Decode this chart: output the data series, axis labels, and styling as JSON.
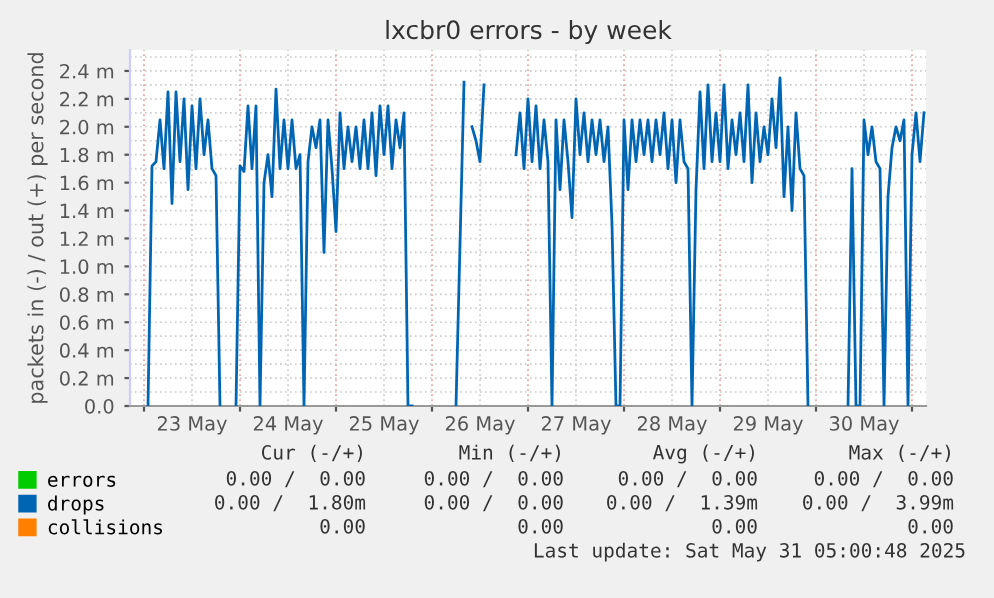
{
  "chart_data": {
    "type": "line",
    "title": "lxcbr0 errors - by week",
    "ylabel": "packets in (-) / out (+) per second",
    "xlim": [
      "2025-05-22T20:30",
      "2025-05-31T03:30"
    ],
    "xticks": [
      {
        "value": "2025-05-23T00:00",
        "label": null
      },
      {
        "value": "2025-05-24T00:00",
        "label": null
      },
      {
        "value": "2025-05-25T00:00",
        "label": null
      },
      {
        "value": "2025-05-26T00:00",
        "label": null
      },
      {
        "value": "2025-05-27T00:00",
        "label": null
      },
      {
        "value": "2025-05-28T00:00",
        "label": null
      },
      {
        "value": "2025-05-29T00:00",
        "label": null
      },
      {
        "value": "2025-05-30T00:00",
        "label": null
      },
      {
        "value": "2025-05-31T00:00",
        "label": null
      },
      {
        "value": "2025-05-23T12:00",
        "label": "23 May"
      },
      {
        "value": "2025-05-24T12:00",
        "label": "24 May"
      },
      {
        "value": "2025-05-25T12:00",
        "label": "25 May"
      },
      {
        "value": "2025-05-26T12:00",
        "label": "26 May"
      },
      {
        "value": "2025-05-27T12:00",
        "label": "27 May"
      },
      {
        "value": "2025-05-28T12:00",
        "label": "28 May"
      },
      {
        "value": "2025-05-29T12:00",
        "label": "29 May"
      },
      {
        "value": "2025-05-30T12:00",
        "label": "30 May"
      }
    ],
    "ylim": [
      0,
      2.55
    ],
    "yticks": [
      {
        "value": 0,
        "label": "0.0"
      },
      {
        "value": 0.2,
        "label": "0.2 m"
      },
      {
        "value": 0.4,
        "label": "0.4 m"
      },
      {
        "value": 0.6,
        "label": "0.6 m"
      },
      {
        "value": 0.8,
        "label": "0.8 m"
      },
      {
        "value": 1.0,
        "label": "1.0 m"
      },
      {
        "value": 1.2,
        "label": "1.2 m"
      },
      {
        "value": 1.4,
        "label": "1.4 m"
      },
      {
        "value": 1.6,
        "label": "1.6 m"
      },
      {
        "value": 1.8,
        "label": "1.8 m"
      },
      {
        "value": 2.0,
        "label": "2.0 m"
      },
      {
        "value": 2.2,
        "label": "2.2 m"
      },
      {
        "value": 2.4,
        "label": "2.4 m"
      }
    ],
    "grid": true,
    "legend": "bottom left",
    "series": [
      {
        "name": "errors",
        "color": "#00cc00"
      },
      {
        "name": "drops",
        "color": "#0066b3",
        "x": [
          "2025-05-23T01:00",
          "2025-05-23T02:00",
          "2025-05-23T03:00",
          "2025-05-23T04:00",
          "2025-05-23T05:00",
          "2025-05-23T06:00",
          "2025-05-23T07:00",
          "2025-05-23T08:00",
          "2025-05-23T09:00",
          "2025-05-23T10:00",
          "2025-05-23T11:00",
          "2025-05-23T12:00",
          "2025-05-23T13:00",
          "2025-05-23T14:00",
          "2025-05-23T15:00",
          "2025-05-23T16:00",
          "2025-05-23T17:00",
          "2025-05-23T18:00",
          "2025-05-23T19:00",
          "2025-05-23T21:00",
          "2025-05-23T23:00",
          "2025-05-24T00:00",
          "2025-05-24T01:00",
          "2025-05-24T02:00",
          "2025-05-24T03:00",
          "2025-05-24T04:00",
          "2025-05-24T05:00",
          "2025-05-24T06:00",
          "2025-05-24T07:00",
          "2025-05-24T08:00",
          "2025-05-24T09:00",
          "2025-05-24T10:00",
          "2025-05-24T11:00",
          "2025-05-24T12:00",
          "2025-05-24T13:00",
          "2025-05-24T14:00",
          "2025-05-24T15:00",
          "2025-05-24T16:00",
          "2025-05-24T17:00",
          "2025-05-24T18:00",
          "2025-05-24T19:00",
          "2025-05-24T20:00",
          "2025-05-24T21:00",
          "2025-05-24T22:00",
          "2025-05-24T23:00",
          "2025-05-25T00:00",
          "2025-05-25T01:00",
          "2025-05-25T02:00",
          "2025-05-25T03:00",
          "2025-05-25T04:00",
          "2025-05-25T05:00",
          "2025-05-25T06:00",
          "2025-05-25T07:00",
          "2025-05-25T08:00",
          "2025-05-25T09:00",
          "2025-05-25T10:00",
          "2025-05-25T11:00",
          "2025-05-25T12:00",
          "2025-05-25T13:00",
          "2025-05-25T14:00",
          "2025-05-25T15:00",
          "2025-05-25T16:00",
          "2025-05-25T17:00",
          "2025-05-25T18:00",
          "2025-05-25T19:00",
          "2025-05-25T23:00",
          "2025-05-26T06:00",
          "2025-05-26T08:00",
          "2025-05-26T09:00",
          "2025-05-26T10:00",
          "2025-05-26T11:00",
          "2025-05-26T12:00",
          "2025-05-26T13:00",
          "2025-05-26T15:00",
          "2025-05-26T21:00",
          "2025-05-26T22:00",
          "2025-05-26T23:00",
          "2025-05-27T00:00",
          "2025-05-27T01:00",
          "2025-05-27T02:00",
          "2025-05-27T03:00",
          "2025-05-27T04:00",
          "2025-05-27T05:00",
          "2025-05-27T06:00",
          "2025-05-27T07:00",
          "2025-05-27T08:00",
          "2025-05-27T09:00",
          "2025-05-27T10:00",
          "2025-05-27T11:00",
          "2025-05-27T12:00",
          "2025-05-27T13:00",
          "2025-05-27T14:00",
          "2025-05-27T15:00",
          "2025-05-27T16:00",
          "2025-05-27T17:00",
          "2025-05-27T18:00",
          "2025-05-27T19:00",
          "2025-05-27T20:00",
          "2025-05-27T21:00",
          "2025-05-27T22:00",
          "2025-05-27T23:00",
          "2025-05-28T00:00",
          "2025-05-28T01:00",
          "2025-05-28T02:00",
          "2025-05-28T03:00",
          "2025-05-28T04:00",
          "2025-05-28T05:00",
          "2025-05-28T06:00",
          "2025-05-28T07:00",
          "2025-05-28T08:00",
          "2025-05-28T09:00",
          "2025-05-28T10:00",
          "2025-05-28T11:00",
          "2025-05-28T12:00",
          "2025-05-28T13:00",
          "2025-05-28T14:00",
          "2025-05-28T15:00",
          "2025-05-28T16:00",
          "2025-05-28T17:00",
          "2025-05-28T18:00",
          "2025-05-28T19:00",
          "2025-05-28T20:00",
          "2025-05-28T21:00",
          "2025-05-28T22:00",
          "2025-05-28T23:00",
          "2025-05-29T00:00",
          "2025-05-29T01:00",
          "2025-05-29T02:00",
          "2025-05-29T03:00",
          "2025-05-29T04:00",
          "2025-05-29T05:00",
          "2025-05-29T06:00",
          "2025-05-29T07:00",
          "2025-05-29T08:00",
          "2025-05-29T09:00",
          "2025-05-29T10:00",
          "2025-05-29T11:00",
          "2025-05-29T12:00",
          "2025-05-29T13:00",
          "2025-05-29T14:00",
          "2025-05-29T15:00",
          "2025-05-29T16:00",
          "2025-05-29T17:00",
          "2025-05-29T18:00",
          "2025-05-29T19:00",
          "2025-05-29T20:00",
          "2025-05-29T21:00",
          "2025-05-29T22:00",
          "2025-05-30T03:00",
          "2025-05-30T08:00",
          "2025-05-30T09:00",
          "2025-05-30T10:00",
          "2025-05-30T11:00",
          "2025-05-30T12:00",
          "2025-05-30T13:00",
          "2025-05-30T14:00",
          "2025-05-30T15:00",
          "2025-05-30T16:00",
          "2025-05-30T17:00",
          "2025-05-30T18:00",
          "2025-05-30T19:00",
          "2025-05-30T20:00",
          "2025-05-30T21:00",
          "2025-05-30T22:00",
          "2025-05-30T23:00",
          "2025-05-31T00:00",
          "2025-05-31T01:00",
          "2025-05-31T02:00",
          "2025-05-31T03:00"
        ],
        "values": [
          0,
          1.72,
          1.75,
          2.05,
          1.7,
          2.25,
          1.45,
          2.25,
          1.75,
          2.2,
          1.55,
          2.15,
          1.7,
          2.2,
          1.8,
          2.05,
          1.7,
          1.65,
          0,
          null,
          0,
          1.72,
          1.68,
          2.15,
          1.7,
          2.15,
          0,
          1.6,
          1.8,
          1.5,
          2.27,
          1.7,
          2.05,
          1.7,
          2.05,
          1.7,
          1.8,
          0,
          1.75,
          2.0,
          1.85,
          2.05,
          1.1,
          2.05,
          1.7,
          1.25,
          2.1,
          1.7,
          2.0,
          1.75,
          2.0,
          1.7,
          2.05,
          1.7,
          2.1,
          1.65,
          2.15,
          1.8,
          2.15,
          1.7,
          2.05,
          1.85,
          2.1,
          0,
          0,
          null,
          0,
          2.32,
          null,
          2.0,
          1.9,
          1.75,
          2.3,
          null,
          1.8,
          2.1,
          1.7,
          2.2,
          1.75,
          2.15,
          1.7,
          2.05,
          1.75,
          0,
          2.05,
          1.55,
          2.05,
          1.75,
          1.35,
          2.2,
          1.8,
          2.1,
          1.75,
          2.05,
          1.8,
          2.05,
          1.75,
          2.0,
          1.3,
          0,
          0,
          2.05,
          1.55,
          2.05,
          1.75,
          2.05,
          1.8,
          2.05,
          1.75,
          2.05,
          1.8,
          2.1,
          1.7,
          2.05,
          1.6,
          2.05,
          1.75,
          1.7,
          0,
          1.55,
          2.25,
          1.7,
          2.3,
          1.75,
          2.1,
          1.75,
          2.3,
          1.7,
          2.05,
          1.8,
          2.1,
          1.75,
          2.3,
          1.6,
          2.1,
          1.75,
          2.0,
          1.8,
          2.2,
          1.85,
          2.35,
          1.5,
          2.0,
          1.4,
          2.1,
          1.7,
          1.65,
          0,
          null,
          0,
          1.7,
          0,
          0,
          2.05,
          1.8,
          2.0,
          1.75,
          1.7,
          0,
          1.5,
          1.85,
          2.0,
          1.9,
          2.05,
          0,
          1.8,
          2.1,
          1.75,
          2.1
        ]
      },
      {
        "name": "collisions",
        "color": "#ff7f00"
      }
    ],
    "annotations": [
      "Cur (-/+)",
      "Min (-/+)",
      "Avg (-/+)",
      "Max (-/+)",
      "0.00 /  0.00",
      "0.00 /  0.00",
      "0.00 /  0.00",
      "0.00 /  0.00",
      "0.00 /  1.80m",
      "0.00 /  0.00",
      "0.00 /  1.39m",
      "0.00 /  3.99m",
      "0.00",
      "0.00",
      "0.00",
      "0.00",
      "Last update: Sat May 31 05:00:48 2025"
    ]
  }
}
